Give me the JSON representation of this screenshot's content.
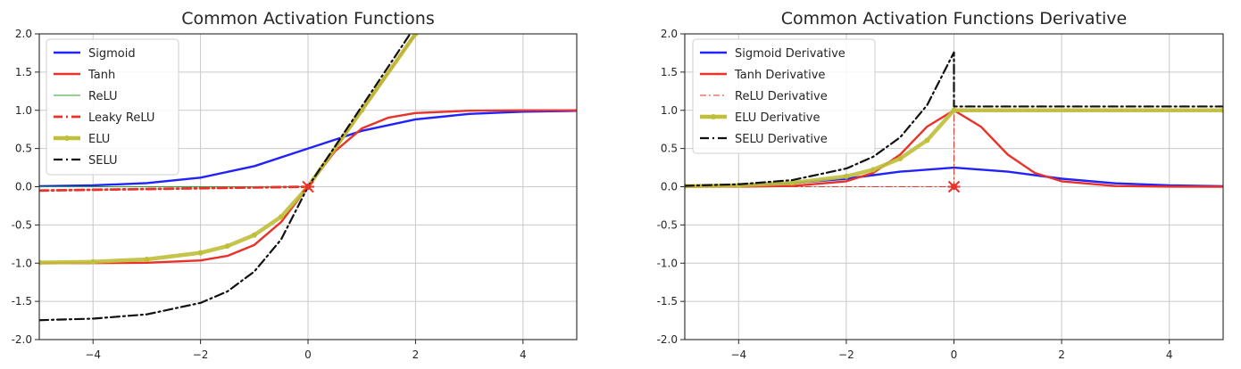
{
  "chart_data": [
    {
      "type": "line",
      "title": "Common Activation Functions",
      "xlabel": "",
      "ylabel": "",
      "xlim": [
        -5,
        5
      ],
      "ylim": [
        -2,
        2
      ],
      "xticks": [
        -4,
        -2,
        0,
        2,
        4
      ],
      "xtick_labels": [
        "−4",
        "−2",
        "0",
        "2",
        "4"
      ],
      "yticks": [
        2.0,
        1.5,
        1.0,
        0.5,
        0.0,
        -0.5,
        -1.0,
        -1.5,
        -2.0
      ],
      "ytick_labels": [
        "2.0",
        "1.5",
        "1.0",
        "0.5",
        "0.0",
        "-0.5",
        "-1.0",
        "-1.5",
        "-2.0"
      ],
      "grid": true,
      "legend_position": "top-left",
      "series": [
        {
          "name": "Sigmoid",
          "color": "#2222ff",
          "style": "solid",
          "x": [
            -5,
            -4,
            -3,
            -2,
            -1,
            0,
            1,
            2,
            3,
            4,
            5
          ],
          "y": [
            0.007,
            0.018,
            0.047,
            0.119,
            0.269,
            0.5,
            0.731,
            0.881,
            0.953,
            0.982,
            0.993
          ]
        },
        {
          "name": "Tanh",
          "color": "#e8322a",
          "style": "solid",
          "x": [
            -5,
            -4,
            -3,
            -2,
            -1.5,
            -1,
            -0.5,
            0,
            0.5,
            1,
            1.5,
            2,
            3,
            4,
            5
          ],
          "y": [
            -1.0,
            -0.999,
            -0.995,
            -0.964,
            -0.905,
            -0.762,
            -0.462,
            0.0,
            0.462,
            0.762,
            0.905,
            0.964,
            0.995,
            0.999,
            1.0
          ]
        },
        {
          "name": "ReLU",
          "color": "#2ca02c",
          "style": "solid-thin",
          "x": [
            -5,
            0,
            2
          ],
          "y": [
            0,
            0,
            2
          ]
        },
        {
          "name": "Leaky ReLU",
          "color": "#e8322a",
          "style": "dashdot-thick",
          "x": [
            -5,
            0,
            2
          ],
          "y": [
            -0.05,
            0,
            2
          ]
        },
        {
          "name": "ELU",
          "color": "#bfbf3a",
          "style": "dotted-markers",
          "x": [
            -5,
            -4,
            -3,
            -2,
            -1.5,
            -1,
            -0.5,
            0,
            1,
            2
          ],
          "y": [
            -0.993,
            -0.982,
            -0.95,
            -0.865,
            -0.777,
            -0.632,
            -0.393,
            0.0,
            1.0,
            2.0
          ]
        },
        {
          "name": "SELU",
          "color": "#111111",
          "style": "dashdot",
          "x": [
            -5,
            -4,
            -3,
            -2,
            -1.5,
            -1,
            -0.5,
            0,
            1,
            1.9
          ],
          "y": [
            -1.746,
            -1.726,
            -1.67,
            -1.52,
            -1.37,
            -1.11,
            -0.69,
            0.0,
            1.05,
            2.0
          ]
        }
      ],
      "annotations": [
        {
          "type": "star-marker",
          "x": 0,
          "y": 0,
          "color": "#e8322a"
        }
      ]
    },
    {
      "type": "line",
      "title": "Common Activation Functions Derivative",
      "xlabel": "",
      "ylabel": "",
      "xlim": [
        -5,
        5
      ],
      "ylim": [
        -2,
        2
      ],
      "xticks": [
        -4,
        -2,
        0,
        2,
        4
      ],
      "xtick_labels": [
        "−4",
        "−2",
        "0",
        "2",
        "4"
      ],
      "yticks": [
        2.0,
        1.5,
        1.0,
        0.5,
        0.0,
        -0.5,
        -1.0,
        -1.5,
        -2.0
      ],
      "ytick_labels": [
        "2.0",
        "1.5",
        "1.0",
        "0.5",
        "0.0",
        "-0.5",
        "-1.0",
        "-1.5",
        "-2.0"
      ],
      "grid": true,
      "legend_position": "top-left",
      "series": [
        {
          "name": "Sigmoid Derivative",
          "color": "#2222ff",
          "style": "solid",
          "x": [
            -5,
            -4,
            -3,
            -2,
            -1,
            0,
            1,
            2,
            3,
            4,
            5
          ],
          "y": [
            0.007,
            0.018,
            0.045,
            0.105,
            0.197,
            0.25,
            0.197,
            0.105,
            0.045,
            0.018,
            0.007
          ]
        },
        {
          "name": "Tanh Derivative",
          "color": "#e8322a",
          "style": "solid",
          "x": [
            -5,
            -4,
            -3,
            -2,
            -1.5,
            -1,
            -0.5,
            0,
            0.5,
            1,
            1.5,
            2,
            3,
            4,
            5
          ],
          "y": [
            0.0,
            0.001,
            0.01,
            0.071,
            0.181,
            0.42,
            0.786,
            1.0,
            0.786,
            0.42,
            0.181,
            0.071,
            0.01,
            0.001,
            0.0
          ]
        },
        {
          "name": "ReLU Derivative",
          "color": "#e8322a",
          "style": "dashdot-thin",
          "x": [
            -5,
            0,
            0,
            5
          ],
          "y": [
            0,
            0,
            1,
            1
          ]
        },
        {
          "name": "ELU Derivative",
          "color": "#bfbf3a",
          "style": "dotted-markers",
          "x": [
            -5,
            -4,
            -3,
            -2,
            -1.5,
            -1,
            -0.5,
            0,
            0,
            5
          ],
          "y": [
            0.007,
            0.018,
            0.05,
            0.135,
            0.223,
            0.368,
            0.607,
            1.0,
            1.0,
            1.0
          ]
        },
        {
          "name": "SELU Derivative",
          "color": "#111111",
          "style": "dashdot",
          "x": [
            -5,
            -4,
            -3,
            -2,
            -1.5,
            -1,
            -0.5,
            0,
            0,
            5
          ],
          "y": [
            0.012,
            0.032,
            0.087,
            0.238,
            0.392,
            0.646,
            1.066,
            1.758,
            1.05,
            1.05
          ]
        }
      ],
      "annotations": [
        {
          "type": "star-marker",
          "x": 0,
          "y": 0,
          "color": "#e8322a"
        }
      ]
    }
  ]
}
